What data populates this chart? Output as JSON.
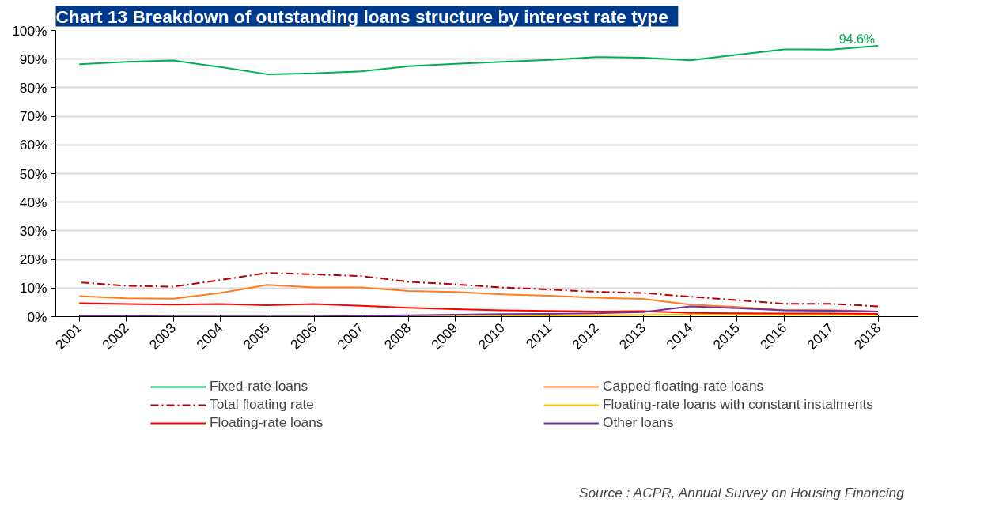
{
  "chart_data": {
    "type": "line",
    "title": "Chart 13   Breakdown of outstanding loans structure by interest rate type",
    "categories": [
      "2001",
      "2002",
      "2003",
      "2004",
      "2005",
      "2006",
      "2007",
      "2008",
      "2009",
      "2010",
      "2011",
      "2012",
      "2013",
      "2014",
      "2015",
      "2016",
      "2017",
      "2018"
    ],
    "series": [
      {
        "name": "Fixed-rate loans",
        "color": "#00b050",
        "values": [
          88.2,
          89.0,
          89.5,
          87.2,
          84.7,
          85.0,
          85.7,
          87.5,
          88.3,
          89.0,
          89.7,
          90.7,
          90.5,
          89.6,
          91.5,
          93.4,
          93.3,
          94.6
        ],
        "value_labels": [
          null,
          null,
          null,
          null,
          null,
          null,
          null,
          null,
          null,
          null,
          null,
          null,
          null,
          null,
          null,
          null,
          null,
          "94.6%"
        ]
      },
      {
        "name": "Capped floating-rate loans",
        "color": "#ff7c1f",
        "values": [
          7.2,
          6.4,
          6.3,
          8.3,
          11.1,
          10.2,
          10.2,
          9.0,
          8.6,
          7.8,
          7.3,
          6.6,
          6.2,
          4.2,
          3.4,
          2.3,
          2.3,
          1.8
        ]
      },
      {
        "name": "Total floating rate",
        "color": "#c00000",
        "line_style": "dashed",
        "values": [
          12.0,
          10.8,
          10.5,
          12.8,
          15.3,
          14.8,
          14.2,
          12.2,
          11.3,
          10.2,
          9.5,
          8.7,
          8.3,
          7.0,
          5.8,
          4.5,
          4.5,
          3.6
        ]
      },
      {
        "name": "Floating-rate loans with constant instalments",
        "color": "#ffc000",
        "values": [
          null,
          null,
          null,
          null,
          null,
          null,
          null,
          0.2,
          0.3,
          0.3,
          0.4,
          0.5,
          0.6,
          0.7,
          0.7,
          0.6,
          0.6,
          0.6
        ]
      },
      {
        "name": "Floating-rate loans",
        "color": "#ff0000",
        "values": [
          4.7,
          4.4,
          4.2,
          4.4,
          4.0,
          4.4,
          3.8,
          3.1,
          2.6,
          2.2,
          2.0,
          1.8,
          1.9,
          1.3,
          1.2,
          1.1,
          1.1,
          1.0
        ]
      },
      {
        "name": "Other loans",
        "color": "#7030a0",
        "values": [
          0.2,
          0.2,
          0.1,
          0.1,
          0.1,
          0.1,
          0.2,
          0.5,
          0.7,
          0.9,
          1.0,
          1.2,
          1.6,
          3.6,
          3.0,
          2.2,
          2.1,
          1.8
        ]
      }
    ],
    "ylim": [
      0,
      100
    ],
    "yticks": [
      {
        "value": 0,
        "label": "0%"
      },
      {
        "value": 10,
        "label": "10%"
      },
      {
        "value": 20,
        "label": "20%"
      },
      {
        "value": 30,
        "label": "30%"
      },
      {
        "value": 40,
        "label": "40%"
      },
      {
        "value": 50,
        "label": "50%"
      },
      {
        "value": 60,
        "label": "60%"
      },
      {
        "value": 70,
        "label": "70%"
      },
      {
        "value": 80,
        "label": "80%"
      },
      {
        "value": 90,
        "label": "90%"
      },
      {
        "value": 100,
        "label": "100%"
      }
    ],
    "grid": "y",
    "legend": "bottom",
    "annotations": [
      "Source : ACPR, Annual Survey on Housing Financing"
    ]
  }
}
